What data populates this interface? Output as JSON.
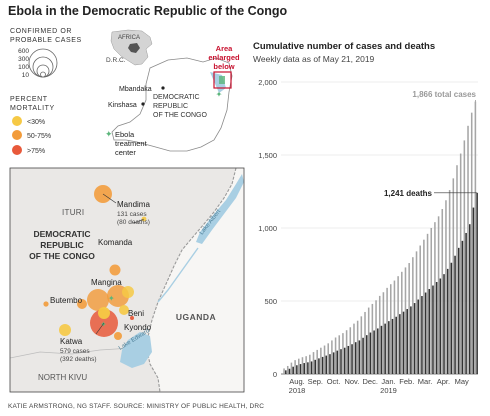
{
  "header": {
    "title": "Ebola in the Democratic Republic of the Congo"
  },
  "legend": {
    "size_title_line1": "CONFIRMED OR",
    "size_title_line2": "PROBABLE CASES",
    "size_values": [
      "600",
      "300",
      "100",
      "10"
    ],
    "mortality_title_line1": "PERCENT",
    "mortality_title_line2": "MORTALITY",
    "mortality_classes": [
      {
        "label": "<30%",
        "color": "#f6c945"
      },
      {
        "label": "50-75%",
        "color": "#f29b3a"
      },
      {
        "label": ">75%",
        "color": "#e8593a"
      }
    ],
    "treatment_line1": "Ebola",
    "treatment_line2": "treatment",
    "treatment_line3": "center",
    "treatment_color": "#5bb57a"
  },
  "locator": {
    "africa": "AFRICA",
    "drc_abbr": "D.R.C.",
    "mbandaka": "Mbandaka",
    "kinshasa": "Kinshasa",
    "country_line1": "DEMOCRATIC",
    "country_line2": "REPUBLIC",
    "country_line3": "OF THE CONGO",
    "area_line1": "Area",
    "area_line2": "enlarged",
    "area_line3": "below",
    "area_color": "#c8102e"
  },
  "map": {
    "ituri": "ITURI",
    "country_line1": "DEMOCRATIC",
    "country_line2": "REPUBLIC",
    "country_line3": "OF THE CONGO",
    "north_kivu": "NORTH KIVU",
    "uganda": "UGANDA",
    "lake_albert": "Lake Albert",
    "lake_edward": "Lake Edward",
    "mandima_name": "Mandima",
    "mandima_cases": "131 cases",
    "mandima_deaths": "(80 deaths)",
    "komanda": "Komanda",
    "mangina": "Mangina",
    "butembo": "Butembo",
    "beni": "Beni",
    "kyondo": "Kyondo",
    "katwa_name": "Katwa",
    "katwa_cases": "579 cases",
    "katwa_deaths": "(392 deaths)",
    "land_color": "#eae8e6",
    "water_color": "#a9cfe3"
  },
  "chart": {
    "title": "Cumulative number of cases and deaths",
    "subtitle": "Weekly data as of May 21, 2019",
    "total_label": "1,866 total cases",
    "deaths_label": "1,241 deaths",
    "cases_color": "#a6a6a6",
    "deaths_color": "#333333"
  },
  "chart_data": {
    "type": "bar",
    "ylim": [
      0,
      2000
    ],
    "yticks": [
      0,
      500,
      1000,
      1500,
      2000
    ],
    "ytick_labels": [
      "0",
      "500",
      "1,000",
      "1,500",
      "2,000"
    ],
    "month_labels": [
      "Aug.",
      "Sep.",
      "Oct.",
      "Nov.",
      "Dec.",
      "Jan.",
      "Feb.",
      "Mar.",
      "Apr.",
      "May"
    ],
    "year_labels": [
      "2018",
      "2019"
    ],
    "series": [
      {
        "name": "total cases",
        "values": [
          38,
          55,
          78,
          95,
          105,
          115,
          122,
          132,
          150,
          165,
          180,
          195,
          210,
          230,
          250,
          265,
          280,
          300,
          320,
          345,
          365,
          395,
          425,
          455,
          480,
          505,
          535,
          560,
          590,
          615,
          640,
          670,
          700,
          730,
          760,
          800,
          840,
          880,
          920,
          960,
          1000,
          1040,
          1080,
          1130,
          1190,
          1260,
          1340,
          1430,
          1510,
          1600,
          1700,
          1790,
          1866
        ]
      },
      {
        "name": "deaths",
        "values": [
          25,
          36,
          50,
          60,
          68,
          75,
          80,
          86,
          97,
          107,
          117,
          126,
          136,
          148,
          160,
          170,
          180,
          192,
          204,
          218,
          230,
          248,
          266,
          284,
          298,
          312,
          330,
          345,
          362,
          377,
          392,
          410,
          427,
          445,
          463,
          486,
          510,
          534,
          558,
          582,
          606,
          630,
          654,
          684,
          720,
          762,
          810,
          864,
          912,
          966,
          1026,
          1140,
          1241
        ]
      }
    ]
  }
}
